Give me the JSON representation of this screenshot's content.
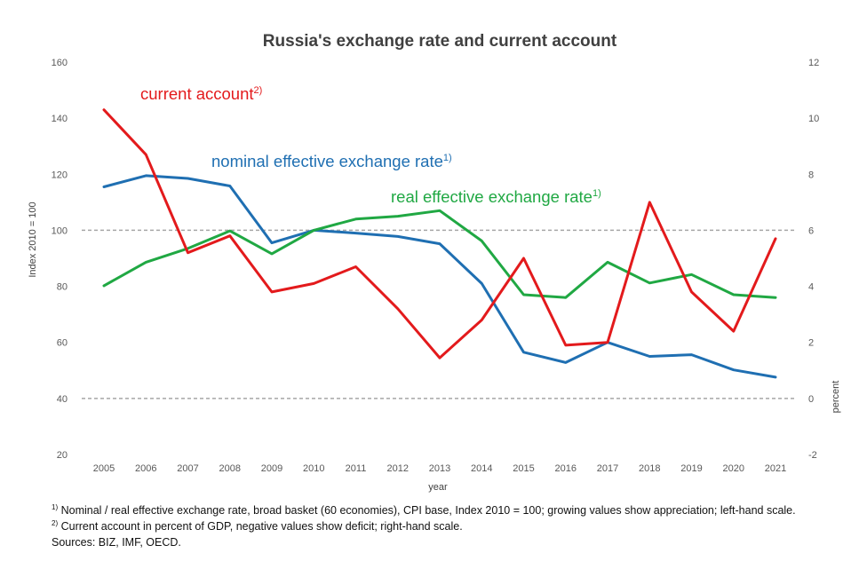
{
  "chart_data": {
    "type": "line",
    "title": "Russia's exchange rate and current account",
    "xlabel": "year",
    "ylabel_left": "Index 2010 = 100",
    "ylabel_right": "percent",
    "x": [
      "2005",
      "2006",
      "2007",
      "2008",
      "2009",
      "2010",
      "2011",
      "2012",
      "2013",
      "2014",
      "2015",
      "2016",
      "2017",
      "2018",
      "2019",
      "2020",
      "2021"
    ],
    "ylim_left": [
      20,
      160
    ],
    "yticks_left": [
      "20",
      "40",
      "60",
      "80",
      "100",
      "120",
      "140",
      "160"
    ],
    "ylim_right": [
      -2,
      12
    ],
    "yticks_right": [
      "-2",
      "0",
      "2",
      "4",
      "6",
      "8",
      "10",
      "12"
    ],
    "reference_lines_left": [
      40,
      100
    ],
    "grid": false,
    "series": [
      {
        "name": "current account",
        "sup": "2)",
        "axis": "right",
        "color": "#e31a1c",
        "values": [
          10.3,
          8.7,
          5.2,
          5.8,
          3.8,
          4.1,
          4.7,
          3.2,
          1.45,
          2.8,
          5.0,
          1.9,
          2.0,
          7.0,
          3.8,
          2.4,
          5.7
        ]
      },
      {
        "name": "nominal effective exchange rate",
        "sup": "1)",
        "axis": "left",
        "color": "#1f6fb2",
        "values": [
          115.5,
          119.5,
          118.5,
          115.8,
          95.5,
          100,
          99,
          97.8,
          95.2,
          81,
          56.5,
          52.8,
          60,
          55,
          55.6,
          50.2,
          47.6
        ]
      },
      {
        "name": "real effective exchange rate",
        "sup": "1)",
        "axis": "left",
        "color": "#20a843",
        "values": [
          80.2,
          88.6,
          93.5,
          99.8,
          91.6,
          100,
          104,
          105,
          107,
          96.2,
          77,
          76,
          88.6,
          81.2,
          84.2,
          77,
          76
        ]
      }
    ]
  },
  "footnotes": {
    "note1_mark": "1)",
    "note1": "Nominal / real effective exchange rate, broad basket (60 economies), CPI base, Index 2010 = 100;  growing values show appreciation; left-hand scale.",
    "note2_mark": "2)",
    "note2": "Current account in percent of GDP, negative values show deficit; right-hand scale.",
    "sources": "Sources: BIZ, IMF, OECD."
  }
}
